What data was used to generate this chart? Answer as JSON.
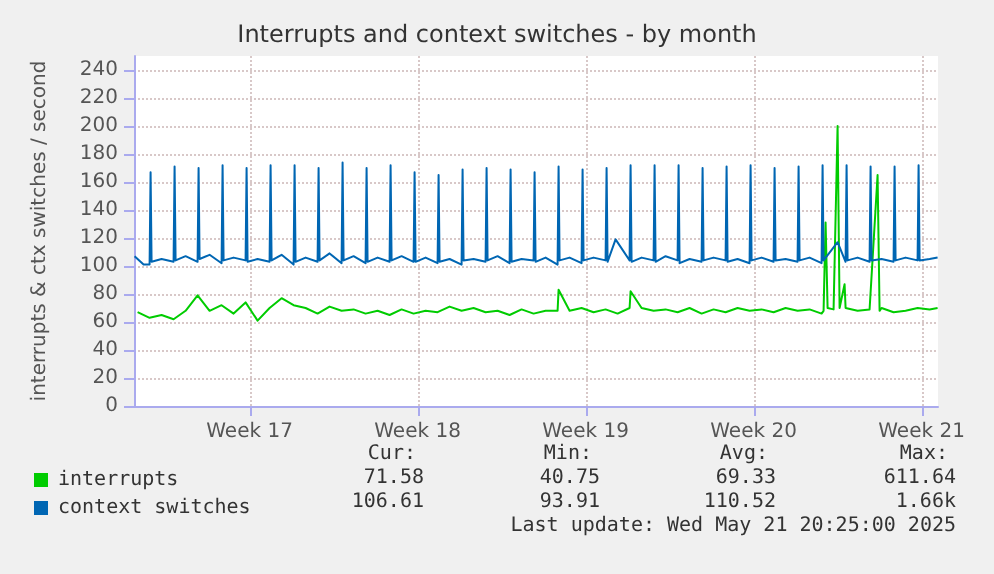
{
  "chart_data": {
    "type": "line",
    "title": "Interrupts and context switches - by month",
    "ylabel": "interrupts & ctx switches / second",
    "xlim": [
      "2025-04-18T08:25",
      "2025-05-21T20:25"
    ],
    "xticks": [
      {
        "value": "2025-04-23T04:00",
        "label": "Week 17"
      },
      {
        "value": "2025-04-30T04:00",
        "label": "Week 18"
      },
      {
        "value": "2025-05-07T04:00",
        "label": "Week 19"
      },
      {
        "value": "2025-05-14T04:00",
        "label": "Week 20"
      },
      {
        "value": "2025-05-21T04:00",
        "label": "Week 21"
      }
    ],
    "ylim": [
      0,
      250
    ],
    "yticks": [
      0,
      20,
      40,
      60,
      80,
      100,
      120,
      140,
      160,
      180,
      200,
      220,
      240
    ],
    "grid": true,
    "legend": "bottom",
    "marker": "none",
    "line_style": "solid",
    "annotations": [
      "Cur:",
      "Min:",
      "Avg:",
      "Max:",
      "71.58",
      "40.75",
      "69.33",
      "611.64",
      "106.61",
      "93.91",
      "110.52",
      "1.66k",
      "Last update: Wed May 21 20:25:00 2025"
    ],
    "series": [
      {
        "name": "interrupts",
        "color": "#00cc00",
        "x": [
          "2025-04-18T12:00",
          "2025-04-19T00:00",
          "2025-04-19T12:00",
          "2025-04-20T00:00",
          "2025-04-20T12:00",
          "2025-04-21T00:00",
          "2025-04-21T12:00",
          "2025-04-22T00:00",
          "2025-04-22T12:00",
          "2025-04-23T00:00",
          "2025-04-23T12:00",
          "2025-04-24T00:00",
          "2025-04-24T12:00",
          "2025-04-25T00:00",
          "2025-04-25T12:00",
          "2025-04-26T00:00",
          "2025-04-26T12:00",
          "2025-04-27T00:00",
          "2025-04-27T12:00",
          "2025-04-28T00:00",
          "2025-04-28T12:00",
          "2025-04-29T00:00",
          "2025-04-29T12:00",
          "2025-04-30T00:00",
          "2025-04-30T12:00",
          "2025-05-01T00:00",
          "2025-05-01T12:00",
          "2025-05-02T00:00",
          "2025-05-02T12:00",
          "2025-05-03T00:00",
          "2025-05-03T12:00",
          "2025-05-04T00:00",
          "2025-05-04T12:00",
          "2025-05-05T00:00",
          "2025-05-05T12:00",
          "2025-05-06T00:00",
          "2025-05-06T01:00",
          "2025-05-06T12:00",
          "2025-05-07T00:00",
          "2025-05-07T12:00",
          "2025-05-08T00:00",
          "2025-05-08T12:00",
          "2025-05-09T00:00",
          "2025-05-09T01:00",
          "2025-05-09T12:00",
          "2025-05-10T00:00",
          "2025-05-10T12:00",
          "2025-05-11T00:00",
          "2025-05-11T12:00",
          "2025-05-12T00:00",
          "2025-05-12T12:00",
          "2025-05-13T00:00",
          "2025-05-13T12:00",
          "2025-05-14T00:00",
          "2025-05-14T12:00",
          "2025-05-15T00:00",
          "2025-05-15T12:00",
          "2025-05-16T00:00",
          "2025-05-16T12:00",
          "2025-05-17T00:00",
          "2025-05-17T02:00",
          "2025-05-17T04:00",
          "2025-05-17T06:00",
          "2025-05-17T12:00",
          "2025-05-17T16:00",
          "2025-05-17T18:00",
          "2025-05-17T23:00",
          "2025-05-18T00:00",
          "2025-05-18T12:00",
          "2025-05-19T00:00",
          "2025-05-19T08:00",
          "2025-05-19T10:00",
          "2025-05-19T12:00",
          "2025-05-20T00:00",
          "2025-05-20T12:00",
          "2025-05-21T00:00",
          "2025-05-21T12:00",
          "2025-05-21T20:00"
        ],
        "values": [
          67,
          63,
          65,
          62,
          68,
          79,
          68,
          72,
          66,
          74,
          61,
          70,
          77,
          72,
          70,
          66,
          71,
          68,
          69,
          66,
          68,
          65,
          69,
          66,
          68,
          67,
          71,
          68,
          70,
          67,
          68,
          65,
          69,
          66,
          68,
          68,
          83,
          68,
          70,
          67,
          69,
          66,
          70,
          82,
          70,
          68,
          69,
          67,
          70,
          66,
          69,
          67,
          70,
          68,
          69,
          67,
          70,
          68,
          69,
          66,
          68,
          131,
          70,
          69,
          200,
          70,
          87,
          70,
          68,
          69,
          165,
          68,
          70,
          67,
          68,
          70,
          69,
          70
        ]
      },
      {
        "name": "context switches",
        "color": "#0066b3",
        "x": [
          "2025-04-18T09:00",
          "2025-04-18T18:00",
          "2025-04-19T00:00",
          "2025-04-19T01:00",
          "2025-04-19T02:00",
          "2025-04-19T12:00",
          "2025-04-20T00:00",
          "2025-04-20T01:00",
          "2025-04-20T02:00",
          "2025-04-20T12:00",
          "2025-04-21T00:00",
          "2025-04-21T01:00",
          "2025-04-21T02:00",
          "2025-04-21T12:00",
          "2025-04-22T00:00",
          "2025-04-22T01:00",
          "2025-04-22T02:00",
          "2025-04-22T12:00",
          "2025-04-23T00:00",
          "2025-04-23T01:00",
          "2025-04-23T02:00",
          "2025-04-23T12:00",
          "2025-04-24T00:00",
          "2025-04-24T01:00",
          "2025-04-24T02:00",
          "2025-04-24T12:00",
          "2025-04-25T00:00",
          "2025-04-25T01:00",
          "2025-04-25T02:00",
          "2025-04-25T12:00",
          "2025-04-26T00:00",
          "2025-04-26T01:00",
          "2025-04-26T02:00",
          "2025-04-26T12:00",
          "2025-04-27T00:00",
          "2025-04-27T01:00",
          "2025-04-27T02:00",
          "2025-04-27T12:00",
          "2025-04-28T00:00",
          "2025-04-28T01:00",
          "2025-04-28T02:00",
          "2025-04-28T12:00",
          "2025-04-29T00:00",
          "2025-04-29T01:00",
          "2025-04-29T02:00",
          "2025-04-29T12:00",
          "2025-04-30T00:00",
          "2025-04-30T01:00",
          "2025-04-30T02:00",
          "2025-04-30T12:00",
          "2025-05-01T00:00",
          "2025-05-01T01:00",
          "2025-05-01T02:00",
          "2025-05-01T12:00",
          "2025-05-02T00:00",
          "2025-05-02T01:00",
          "2025-05-02T02:00",
          "2025-05-02T12:00",
          "2025-05-03T00:00",
          "2025-05-03T01:00",
          "2025-05-03T02:00",
          "2025-05-03T12:00",
          "2025-05-04T00:00",
          "2025-05-04T01:00",
          "2025-05-04T02:00",
          "2025-05-04T12:00",
          "2025-05-05T00:00",
          "2025-05-05T01:00",
          "2025-05-05T02:00",
          "2025-05-05T12:00",
          "2025-05-06T00:00",
          "2025-05-06T01:00",
          "2025-05-06T02:00",
          "2025-05-06T12:00",
          "2025-05-07T00:00",
          "2025-05-07T01:00",
          "2025-05-07T02:00",
          "2025-05-07T12:00",
          "2025-05-08T00:00",
          "2025-05-08T01:00",
          "2025-05-08T02:00",
          "2025-05-08T10:00",
          "2025-05-09T00:00",
          "2025-05-09T01:00",
          "2025-05-09T02:00",
          "2025-05-09T12:00",
          "2025-05-10T00:00",
          "2025-05-10T01:00",
          "2025-05-10T02:00",
          "2025-05-10T12:00",
          "2025-05-11T00:00",
          "2025-05-11T01:00",
          "2025-05-11T02:00",
          "2025-05-11T12:00",
          "2025-05-12T00:00",
          "2025-05-12T01:00",
          "2025-05-12T02:00",
          "2025-05-12T12:00",
          "2025-05-13T00:00",
          "2025-05-13T01:00",
          "2025-05-13T02:00",
          "2025-05-13T12:00",
          "2025-05-14T00:00",
          "2025-05-14T01:00",
          "2025-05-14T02:00",
          "2025-05-14T12:00",
          "2025-05-15T00:00",
          "2025-05-15T01:00",
          "2025-05-15T02:00",
          "2025-05-15T12:00",
          "2025-05-16T00:00",
          "2025-05-16T01:00",
          "2025-05-16T02:00",
          "2025-05-16T12:00",
          "2025-05-17T00:00",
          "2025-05-17T01:00",
          "2025-05-17T02:00",
          "2025-05-17T16:00",
          "2025-05-18T00:00",
          "2025-05-18T01:00",
          "2025-05-18T02:00",
          "2025-05-18T12:00",
          "2025-05-19T00:00",
          "2025-05-19T01:00",
          "2025-05-19T02:00",
          "2025-05-19T12:00",
          "2025-05-20T00:00",
          "2025-05-20T01:00",
          "2025-05-20T02:00",
          "2025-05-20T12:00",
          "2025-05-21T00:00",
          "2025-05-21T01:00",
          "2025-05-21T02:00",
          "2025-05-21T12:00",
          "2025-05-21T20:00"
        ],
        "values": [
          107,
          101,
          101,
          167,
          103,
          105,
          103,
          171,
          104,
          107,
          103,
          170,
          105,
          108,
          102,
          172,
          104,
          106,
          104,
          170,
          103,
          105,
          103,
          172,
          104,
          108,
          101,
          172,
          103,
          106,
          103,
          170,
          104,
          109,
          102,
          174,
          104,
          107,
          102,
          170,
          103,
          106,
          103,
          172,
          104,
          107,
          103,
          167,
          103,
          106,
          102,
          165,
          103,
          105,
          101,
          169,
          104,
          105,
          103,
          170,
          104,
          107,
          102,
          169,
          103,
          105,
          104,
          167,
          103,
          106,
          101,
          171,
          104,
          106,
          102,
          169,
          104,
          106,
          104,
          170,
          103,
          119,
          104,
          172,
          103,
          106,
          104,
          172,
          103,
          107,
          104,
          172,
          102,
          105,
          103,
          170,
          104,
          106,
          104,
          171,
          103,
          105,
          102,
          172,
          104,
          106,
          103,
          170,
          104,
          105,
          103,
          171,
          104,
          106,
          102,
          172,
          104,
          117,
          103,
          172,
          104,
          106,
          103,
          171,
          104,
          105,
          103,
          171,
          104,
          106,
          104,
          172,
          104,
          105,
          106
        ]
      }
    ]
  }
}
